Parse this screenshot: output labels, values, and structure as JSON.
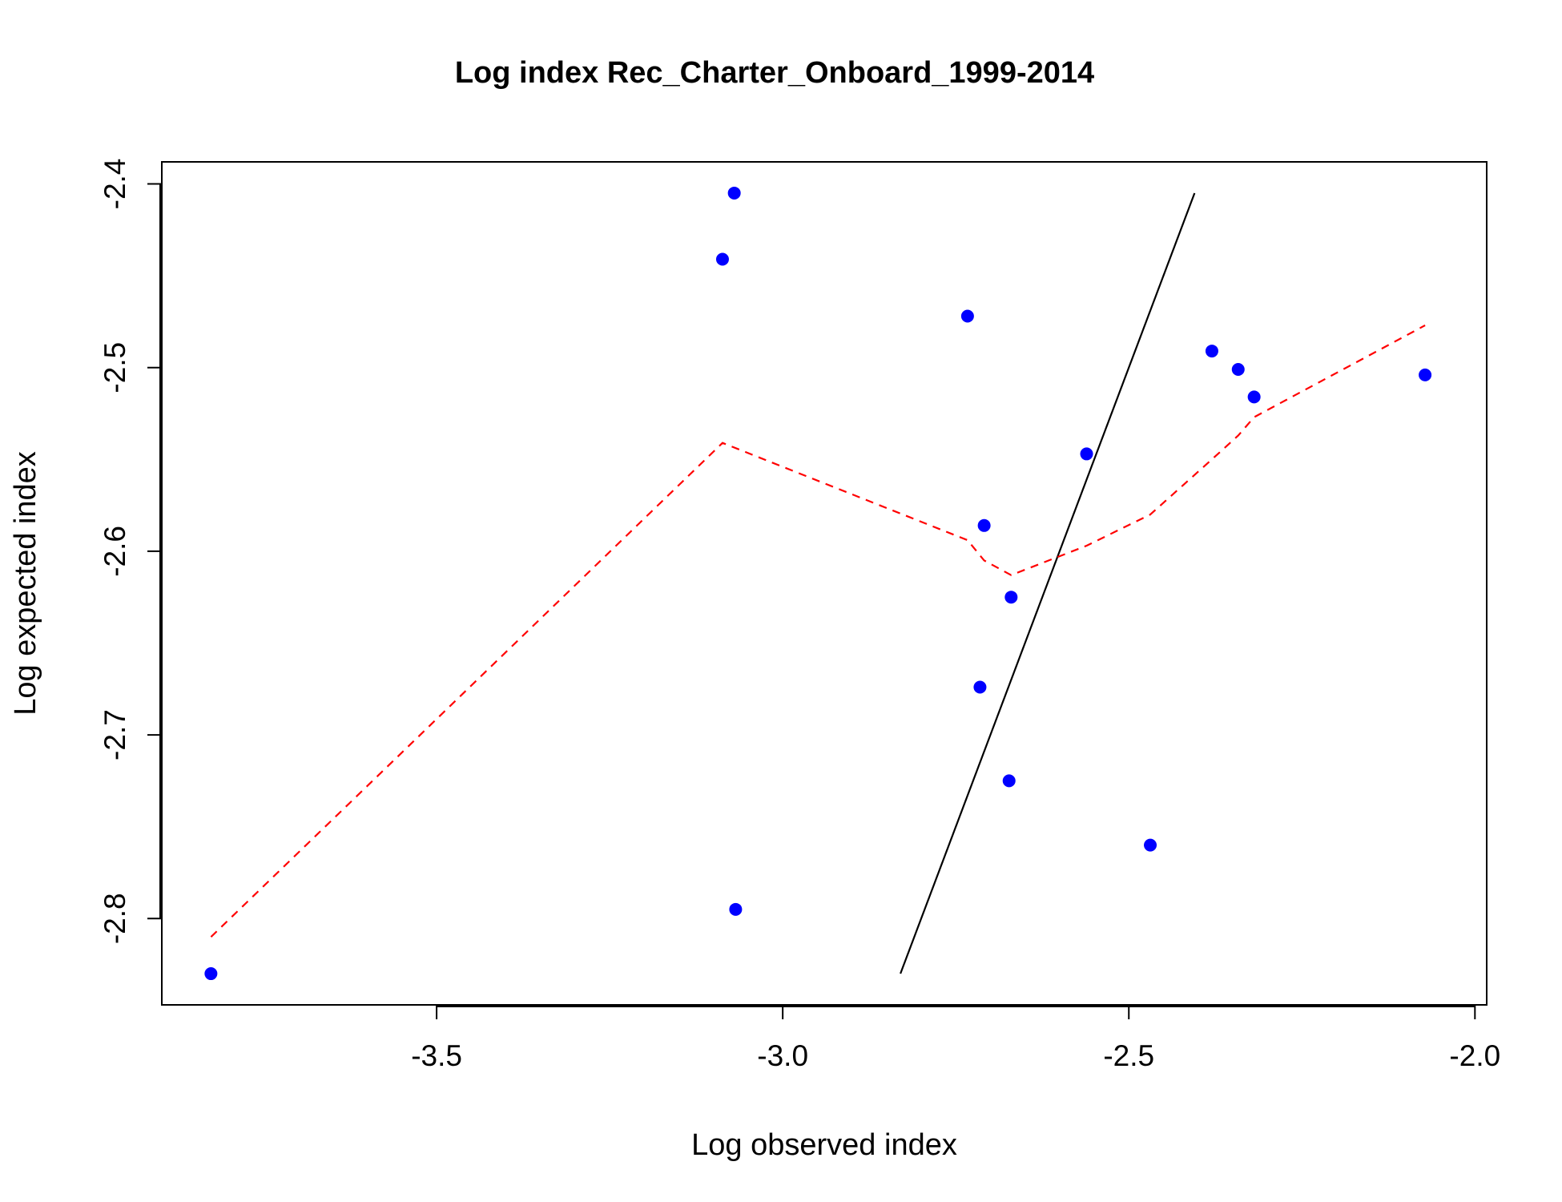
{
  "chart_data": {
    "type": "scatter",
    "title": "Log index Rec_Charter_Onboard_1999-2014",
    "xlabel": "Log observed index",
    "ylabel": "Log expected index",
    "xlim": [
      -3.897,
      -1.983
    ],
    "ylim": [
      -2.847,
      -2.388
    ],
    "grid": false,
    "x_ticks": [
      -3.5,
      -3.0,
      -2.5,
      -2.0
    ],
    "x_tick_labels": [
      "-3.5",
      "-3.0",
      "-2.5",
      "-2.0"
    ],
    "y_ticks": [
      -2.8,
      -2.7,
      -2.6,
      -2.5,
      -2.4
    ],
    "y_tick_labels": [
      "-2.8",
      "-2.7",
      "-2.6",
      "-2.5",
      "-2.4"
    ],
    "series": [
      {
        "name": "observed vs expected",
        "kind": "points",
        "color": "#0000ff",
        "x": [
          -3.826,
          -3.087,
          -3.07,
          -3.068,
          -2.733,
          -2.709,
          -2.715,
          -2.67,
          -2.673,
          -2.561,
          -2.469,
          -2.38,
          -2.342,
          -2.319,
          -2.072
        ],
        "y": [
          -2.83,
          -2.441,
          -2.405,
          -2.795,
          -2.472,
          -2.586,
          -2.674,
          -2.625,
          -2.725,
          -2.547,
          -2.76,
          -2.491,
          -2.501,
          -2.516,
          -2.504
        ]
      },
      {
        "name": "1:1 line",
        "kind": "line",
        "color": "#000000",
        "dash": "solid",
        "x": [
          -2.83,
          -2.405
        ],
        "y": [
          -2.83,
          -2.405
        ]
      },
      {
        "name": "smoother",
        "kind": "line",
        "color": "#ff0000",
        "dash": "dashed",
        "x": [
          -3.826,
          -3.087,
          -2.733,
          -2.709,
          -2.67,
          -2.561,
          -2.469,
          -2.38,
          -2.342,
          -2.319,
          -2.072
        ],
        "y": [
          -2.81,
          -2.541,
          -2.594,
          -2.605,
          -2.613,
          -2.597,
          -2.58,
          -2.55,
          -2.537,
          -2.527,
          -2.477
        ]
      }
    ]
  }
}
